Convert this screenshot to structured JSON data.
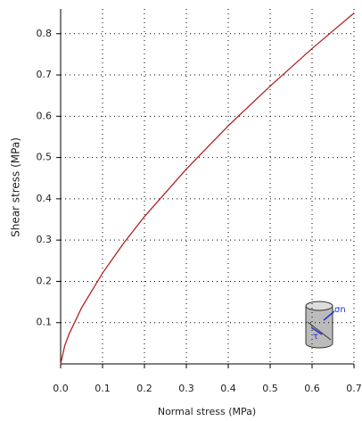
{
  "chart_data": {
    "type": "line",
    "x_label": "Normal stress (MPa)",
    "y_label": "Shear stress (MPa)",
    "x": [
      0,
      0.01,
      0.02,
      0.05,
      0.1,
      0.15,
      0.2,
      0.3,
      0.4,
      0.5,
      0.6,
      0.7
    ],
    "series": [
      {
        "color": "#b22222",
        "values": [
          0,
          0.045,
          0.072,
          0.136,
          0.22,
          0.292,
          0.357,
          0.472,
          0.577,
          0.673,
          0.764,
          0.85
        ]
      }
    ],
    "xlim": [
      0,
      0.7
    ],
    "ylim": [
      0,
      0.86
    ],
    "xticks": [
      {
        "value": 0,
        "label": "0.0"
      },
      0.1,
      0.2,
      0.3,
      0.4,
      0.5,
      0.6,
      0.7
    ],
    "yticks": [
      0.1,
      0.2,
      0.3,
      0.4,
      0.5,
      0.6,
      0.7,
      0.8
    ],
    "grid": true,
    "annotations": [
      "σn",
      "τ"
    ]
  }
}
